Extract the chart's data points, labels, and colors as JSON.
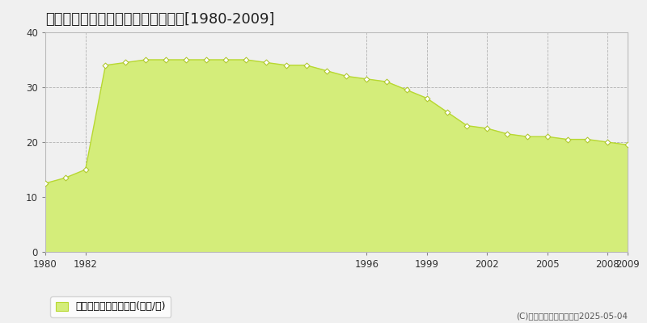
{
  "title": "河北郡内灘町大清台　公示地価推移[1980-2009]",
  "years": [
    1980,
    1981,
    1982,
    1983,
    1984,
    1985,
    1986,
    1987,
    1988,
    1989,
    1990,
    1991,
    1992,
    1993,
    1994,
    1995,
    1996,
    1997,
    1998,
    1999,
    2000,
    2001,
    2002,
    2003,
    2004,
    2005,
    2006,
    2007,
    2008,
    2009
  ],
  "values": [
    12.5,
    13.5,
    15.0,
    34.0,
    34.5,
    35.0,
    35.0,
    35.0,
    35.0,
    35.0,
    35.0,
    34.5,
    34.0,
    34.0,
    33.0,
    32.0,
    31.5,
    31.0,
    29.5,
    28.0,
    25.5,
    23.0,
    22.5,
    21.5,
    21.0,
    21.0,
    20.5,
    20.5,
    20.0,
    19.5
  ],
  "fill_color": "#d4ed7a",
  "line_color": "#b8d832",
  "marker_color": "#ffffff",
  "marker_edge_color": "#b0c830",
  "plot_bg_color": "#f0f0f0",
  "fig_bg_color": "#f0f0f0",
  "grid_color": "#aaaaaa",
  "xlim": [
    1980,
    2009
  ],
  "ylim": [
    0,
    40
  ],
  "yticks": [
    0,
    10,
    20,
    30,
    40
  ],
  "xticks": [
    1980,
    1982,
    1996,
    1999,
    2002,
    2005,
    2008,
    2009
  ],
  "legend_label": "公示地価　平均坪単価(万円/坪)",
  "copyright_text": "(C)土地価格ドットコム　2025-05-04",
  "title_fontsize": 13,
  "tick_fontsize": 8.5,
  "legend_fontsize": 9
}
